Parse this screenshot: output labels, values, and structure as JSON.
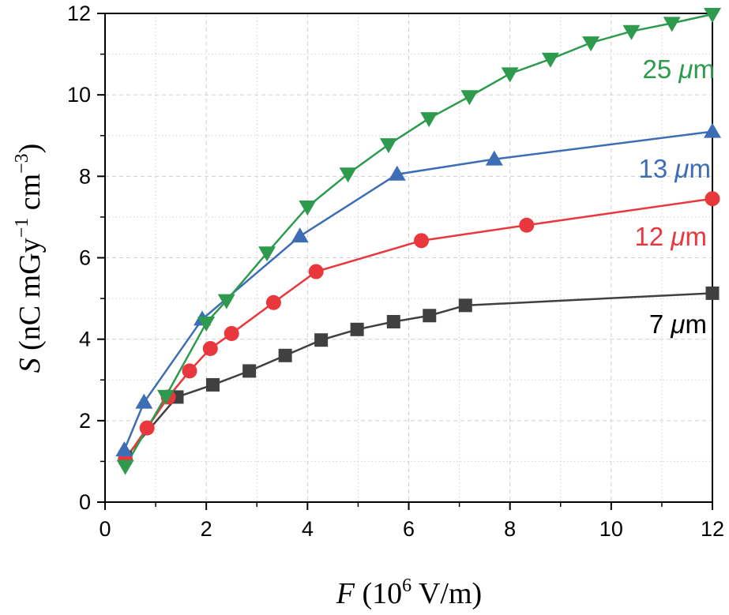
{
  "chart_data": {
    "type": "line",
    "xlabel": {
      "var": "F",
      "pre": " (10",
      "sup": "6",
      "post": " V/m)"
    },
    "ylabel": {
      "var": "S",
      "pre": " (nC mGy",
      "sup1": "−1",
      "mid": " cm",
      "sup2": "−3",
      "post": ")"
    },
    "xlim": [
      0,
      12
    ],
    "ylim": [
      0,
      12
    ],
    "xticks": [
      "0",
      "2",
      "4",
      "6",
      "8",
      "10",
      "12"
    ],
    "yticks": [
      "0",
      "2",
      "4",
      "6",
      "8",
      "10",
      "12"
    ],
    "grid": true,
    "series": [
      {
        "name": "7 μm",
        "name_parts": {
          "num": "7 ",
          "mu": "μ",
          "unit": "m"
        },
        "color": "#404040",
        "marker": "square",
        "x": [
          0.4,
          1.42,
          2.13,
          2.85,
          3.56,
          4.27,
          4.98,
          5.7,
          6.41,
          7.12,
          12.0
        ],
        "y": [
          1.1,
          2.58,
          2.88,
          3.22,
          3.6,
          3.98,
          4.24,
          4.43,
          4.58,
          4.83,
          5.13
        ]
      },
      {
        "name": "12 μm",
        "name_parts": {
          "num": "12 ",
          "mu": "μ",
          "unit": "m"
        },
        "color": "#e8383d",
        "marker": "circle",
        "x": [
          0.4,
          0.83,
          1.25,
          1.67,
          2.08,
          2.5,
          3.33,
          4.17,
          6.25,
          8.33,
          12.0
        ],
        "y": [
          1.05,
          1.82,
          2.58,
          3.22,
          3.77,
          4.14,
          4.9,
          5.66,
          6.42,
          6.8,
          7.45
        ]
      },
      {
        "name": "13 μm",
        "name_parts": {
          "num": "13 ",
          "mu": "μ",
          "unit": "m"
        },
        "color": "#3d6db5",
        "marker": "triangle-up",
        "x": [
          0.38,
          0.77,
          1.92,
          3.85,
          5.77,
          7.69,
          12.0
        ],
        "y": [
          1.28,
          2.45,
          4.49,
          6.53,
          8.05,
          8.42,
          9.1
        ]
      },
      {
        "name": "25 μm",
        "name_parts": {
          "num": "25 ",
          "mu": "μ",
          "unit": "m"
        },
        "color": "#2e9a4e",
        "marker": "triangle-down",
        "x": [
          0.4,
          1.2,
          2.0,
          2.4,
          3.2,
          4.0,
          4.8,
          5.6,
          6.4,
          7.2,
          8.0,
          8.8,
          9.6,
          10.4,
          11.2,
          12.0
        ],
        "y": [
          0.88,
          2.6,
          4.4,
          4.95,
          6.12,
          7.25,
          8.06,
          8.78,
          9.42,
          9.96,
          10.52,
          10.88,
          11.28,
          11.56,
          11.76,
          11.98
        ]
      }
    ]
  }
}
